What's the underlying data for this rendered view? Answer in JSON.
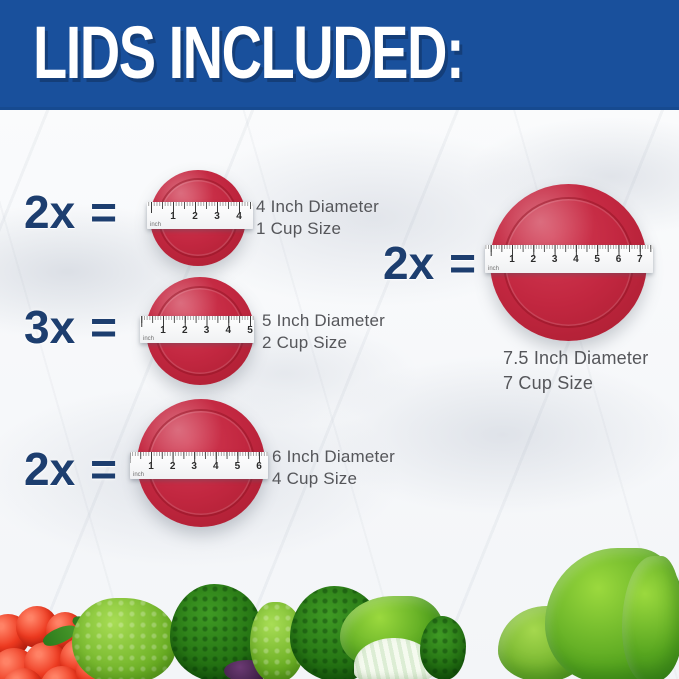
{
  "banner": {
    "title": "LIDS INCLUDED:"
  },
  "colors": {
    "banner_blue": "#19509c",
    "qty_navy": "#1d3e6f",
    "lid_red": "#c22740",
    "lid_red_dark": "#a91d30",
    "label_gray": "#55565a",
    "ruler_white": "#ffffff"
  },
  "lids": [
    {
      "qty": "2x",
      "eq": "=",
      "diameter": "4 Inch Diameter",
      "cup": "1 Cup Size",
      "unit": "inch",
      "numbers": [
        1,
        2,
        3,
        4
      ]
    },
    {
      "qty": "3x",
      "eq": "=",
      "diameter": "5 Inch Diameter",
      "cup": "2 Cup Size",
      "unit": "inch",
      "numbers": [
        1,
        2,
        3,
        4,
        5
      ]
    },
    {
      "qty": "2x",
      "eq": "=",
      "diameter": "6 Inch Diameter",
      "cup": "4 Cup Size",
      "unit": "inch",
      "numbers": [
        1,
        2,
        3,
        4,
        5,
        6
      ]
    },
    {
      "qty": "2x",
      "eq": "=",
      "diameter": "7.5 Inch Diameter",
      "cup": "7 Cup Size",
      "unit": "inch",
      "numbers": [
        1,
        2,
        3,
        4,
        5,
        6,
        7
      ]
    }
  ],
  "decor": {
    "vegetables": [
      "cherry tomatoes",
      "romanesco broccoli",
      "broccoli",
      "bok choy",
      "lettuce",
      "eggplant"
    ]
  }
}
